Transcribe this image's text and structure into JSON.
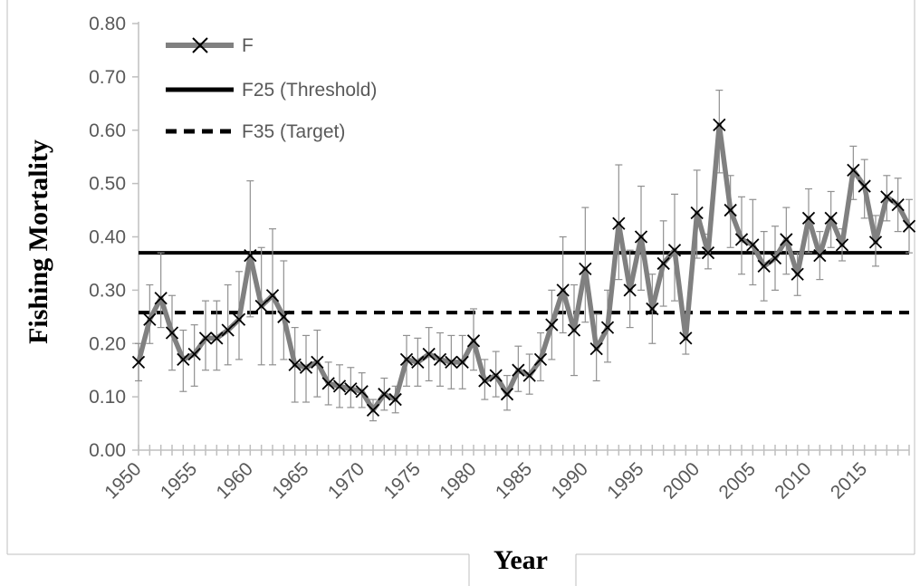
{
  "chart_data": {
    "type": "line",
    "xlabel": "Year",
    "ylabel": "Fishing Mortality",
    "xlim": [
      1950,
      2019
    ],
    "ylim": [
      0,
      0.8
    ],
    "y_ticks": [
      "0.00",
      "0.10",
      "0.20",
      "0.30",
      "0.40",
      "0.50",
      "0.60",
      "0.70",
      "0.80"
    ],
    "x_tick_labels": [
      "1950",
      "1955",
      "1960",
      "1965",
      "1970",
      "1975",
      "1980",
      "1985",
      "1990",
      "1995",
      "2000",
      "2005",
      "2010",
      "2015"
    ],
    "legend_position": "top-left",
    "grid": false,
    "series": [
      {
        "name": "F",
        "style": "line-with-x-markers",
        "color": "#808080",
        "x": [
          1950,
          1951,
          1952,
          1953,
          1954,
          1955,
          1956,
          1957,
          1958,
          1959,
          1960,
          1961,
          1962,
          1963,
          1964,
          1965,
          1966,
          1967,
          1968,
          1969,
          1970,
          1971,
          1972,
          1973,
          1974,
          1975,
          1976,
          1977,
          1978,
          1979,
          1980,
          1981,
          1982,
          1983,
          1984,
          1985,
          1986,
          1987,
          1988,
          1989,
          1990,
          1991,
          1992,
          1993,
          1994,
          1995,
          1996,
          1997,
          1998,
          1999,
          2000,
          2001,
          2002,
          2003,
          2004,
          2005,
          2006,
          2007,
          2008,
          2009,
          2010,
          2011,
          2012,
          2013,
          2014,
          2015,
          2016,
          2017,
          2018,
          2019
        ],
        "y": [
          0.165,
          0.245,
          0.285,
          0.22,
          0.17,
          0.18,
          0.21,
          0.21,
          0.225,
          0.245,
          0.365,
          0.27,
          0.29,
          0.25,
          0.16,
          0.155,
          0.165,
          0.125,
          0.12,
          0.115,
          0.11,
          0.075,
          0.105,
          0.095,
          0.17,
          0.165,
          0.18,
          0.17,
          0.165,
          0.165,
          0.205,
          0.13,
          0.14,
          0.105,
          0.15,
          0.14,
          0.17,
          0.235,
          0.3,
          0.225,
          0.34,
          0.19,
          0.23,
          0.425,
          0.3,
          0.4,
          0.265,
          0.35,
          0.375,
          0.21,
          0.445,
          0.37,
          0.61,
          0.45,
          0.395,
          0.385,
          0.345,
          0.36,
          0.395,
          0.33,
          0.435,
          0.365,
          0.435,
          0.385,
          0.525,
          0.495,
          0.39,
          0.475,
          0.46,
          0.42
        ],
        "err_lower": [
          0.13,
          0.2,
          0.23,
          0.15,
          0.11,
          0.12,
          0.15,
          0.15,
          0.16,
          0.17,
          0.25,
          0.16,
          0.16,
          0.17,
          0.09,
          0.09,
          0.1,
          0.085,
          0.08,
          0.08,
          0.08,
          0.055,
          0.075,
          0.07,
          0.12,
          0.12,
          0.13,
          0.12,
          0.115,
          0.115,
          0.15,
          0.095,
          0.1,
          0.075,
          0.11,
          0.105,
          0.13,
          0.17,
          0.22,
          0.14,
          0.24,
          0.13,
          0.165,
          0.32,
          0.23,
          0.3,
          0.2,
          0.27,
          0.28,
          0.18,
          0.36,
          0.34,
          0.52,
          0.38,
          0.33,
          0.31,
          0.28,
          0.3,
          0.33,
          0.29,
          0.37,
          0.32,
          0.38,
          0.355,
          0.47,
          0.435,
          0.345,
          0.43,
          0.41,
          0.37
        ],
        "err_upper": [
          0.2,
          0.31,
          0.37,
          0.29,
          0.225,
          0.235,
          0.28,
          0.28,
          0.31,
          0.335,
          0.505,
          0.38,
          0.415,
          0.355,
          0.23,
          0.215,
          0.225,
          0.165,
          0.16,
          0.155,
          0.145,
          0.095,
          0.135,
          0.12,
          0.215,
          0.21,
          0.23,
          0.22,
          0.215,
          0.215,
          0.265,
          0.17,
          0.185,
          0.14,
          0.195,
          0.18,
          0.22,
          0.3,
          0.4,
          0.31,
          0.455,
          0.255,
          0.3,
          0.535,
          0.375,
          0.495,
          0.33,
          0.43,
          0.48,
          0.245,
          0.525,
          0.405,
          0.675,
          0.515,
          0.475,
          0.47,
          0.41,
          0.42,
          0.455,
          0.37,
          0.49,
          0.41,
          0.485,
          0.415,
          0.57,
          0.545,
          0.44,
          0.515,
          0.51,
          0.47
        ]
      },
      {
        "name": "F25 (Threshold)",
        "style": "solid",
        "color": "#000000",
        "y_constant": 0.37
      },
      {
        "name": "F35 (Target)",
        "style": "dashed",
        "color": "#000000",
        "y_constant": 0.258
      }
    ]
  }
}
